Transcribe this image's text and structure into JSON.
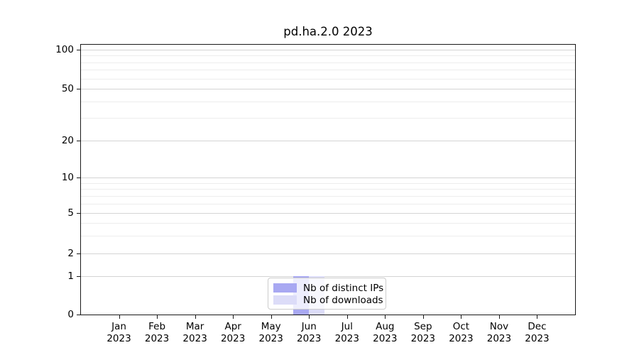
{
  "title": "pd.ha.2.0 2023",
  "legend": {
    "items": [
      {
        "label": "Nb of distinct IPs",
        "color": "#a8a8f2"
      },
      {
        "label": "Nb of downloads",
        "color": "#dcdcf8"
      }
    ]
  },
  "chart_data": {
    "type": "bar",
    "title": "pd.ha.2.0 2023",
    "categories": [
      "Jan",
      "Feb",
      "Mar",
      "Apr",
      "May",
      "Jun",
      "Jul",
      "Aug",
      "Sep",
      "Oct",
      "Nov",
      "Dec"
    ],
    "category_year": "2023",
    "series": [
      {
        "name": "Nb of distinct IPs",
        "color": "#a8a8f2",
        "values": [
          0,
          0,
          0,
          0,
          0,
          1,
          0,
          0,
          0,
          0,
          0,
          0
        ]
      },
      {
        "name": "Nb of downloads",
        "color": "#dcdcf8",
        "values": [
          0,
          0,
          0,
          0,
          0,
          1,
          0,
          0,
          0,
          0,
          0,
          0
        ]
      }
    ],
    "xlabel": "",
    "ylabel": "",
    "yscale": "symlog",
    "yticks": [
      0,
      1,
      2,
      5,
      10,
      20,
      50,
      100
    ],
    "y_minor_gridlines": [
      3,
      4,
      6,
      7,
      8,
      9,
      30,
      40,
      60,
      70,
      80,
      90
    ],
    "ylim": [
      0,
      110
    ],
    "grid": "horizontal",
    "grid_major_color": "#d4d4d4",
    "grid_minor_color": "#ededed",
    "legend_position": "lower center",
    "axis_color": "#1a1a1a"
  }
}
